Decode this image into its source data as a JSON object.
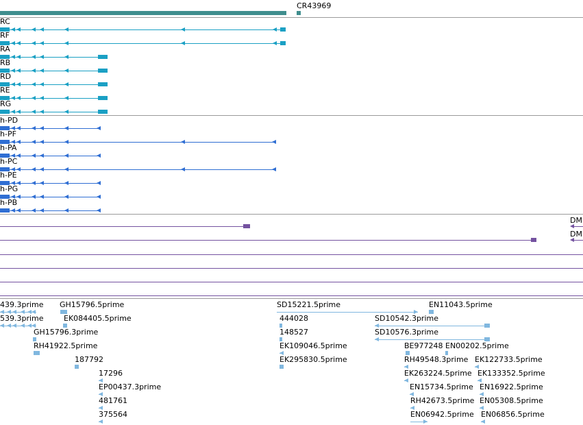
{
  "colors": {
    "ncrna": "#3f8e8e",
    "transcript_r": "#1aa0c4",
    "transcript_p": "#2f6ed3",
    "match": "#7452a0",
    "est": "#80b7df",
    "separator": "#9a9a9a"
  },
  "gene": {
    "label": "CR43969"
  },
  "transcripts_r": [
    {
      "label": "RC"
    },
    {
      "label": "RF"
    },
    {
      "label": "RA"
    },
    {
      "label": "RB"
    },
    {
      "label": "RD"
    },
    {
      "label": "RE"
    },
    {
      "label": "RG"
    }
  ],
  "transcripts_p": [
    {
      "label": "h-PD"
    },
    {
      "label": "h-PF"
    },
    {
      "label": "h-PA"
    },
    {
      "label": "h-PC"
    },
    {
      "label": "h-PE"
    },
    {
      "label": "h-PG"
    },
    {
      "label": "h-PB"
    }
  ],
  "matches": [
    {
      "label": "DM"
    },
    {
      "label": "DM"
    }
  ],
  "est_labels": [
    "439.3prime",
    "GH15796.5prime",
    "SD15221.5prime",
    "EN11043.5prime",
    "539.3prime",
    "EK084405.5prime",
    "444028",
    "SD10542.3prime",
    "GH15796.3prime",
    "148527",
    "SD10576.3prime",
    "RH41922.5prime",
    "EK109046.5prime",
    "BE977248",
    "EN00202.5prime",
    "187792",
    "EK295830.5prime",
    "RH49548.3prime",
    "EK122733.5prime",
    "17296",
    "EK263224.5prime",
    "EK133352.5prime",
    "EP00437.3prime",
    "EN15734.5prime",
    "EN16922.5prime",
    "481761",
    "RH42673.5prime",
    "EN05308.5prime",
    "375564",
    "EN06942.5prime",
    "EN06856.5prime"
  ]
}
